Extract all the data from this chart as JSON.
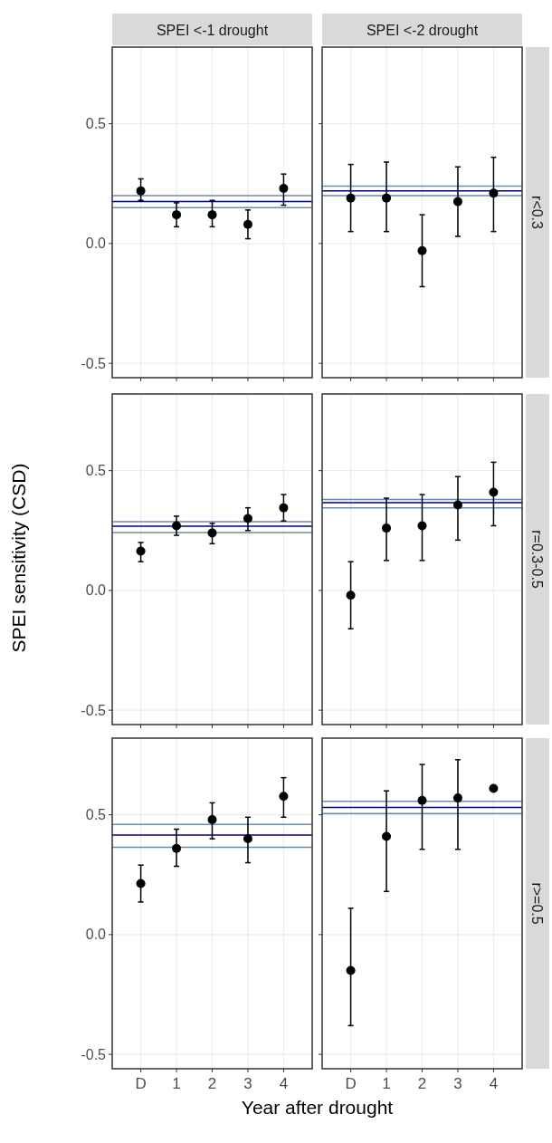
{
  "chart_data": [
    {
      "type": "scatter",
      "title": "SPEI <-1 drought",
      "categories": [
        "D",
        "1",
        "2",
        "3",
        "4"
      ],
      "values": [
        0.22,
        0.12,
        0.12,
        0.08,
        0.23
      ],
      "errors": [
        [
          0.18,
          0.27
        ],
        [
          0.07,
          0.17
        ],
        [
          0.07,
          0.18
        ],
        [
          0.02,
          0.14
        ],
        [
          0.16,
          0.29
        ]
      ],
      "color": "#000000",
      "marker": "circle",
      "ylim": [
        -0.56,
        0.82
      ],
      "yticks": [
        {
          "value": -0.5,
          "label": "-0.5"
        },
        {
          "value": 0,
          "label": "0.0"
        },
        {
          "value": 0.5,
          "label": "0.5"
        }
      ],
      "grid": true,
      "tick_labels": "y",
      "ref_lines": [
        {
          "axis": "y",
          "value": 0.2,
          "color": "#6a8caf"
        },
        {
          "axis": "y",
          "value": 0.175,
          "color": "#00008b"
        },
        {
          "axis": "y",
          "value": 0.15,
          "color": "#6a8caf"
        }
      ]
    },
    {
      "type": "scatter",
      "title": "SPEI <-2 drought",
      "annotations": [
        "r<0.3"
      ],
      "categories": [
        "D",
        "1",
        "2",
        "3",
        "4"
      ],
      "values": [
        0.19,
        0.19,
        -0.03,
        0.175,
        0.21
      ],
      "errors": [
        [
          0.05,
          0.33
        ],
        [
          0.05,
          0.34
        ],
        [
          -0.18,
          0.12
        ],
        [
          0.03,
          0.32
        ],
        [
          0.05,
          0.36
        ]
      ],
      "color": "#000000",
      "marker": "circle",
      "ylim": [
        -0.56,
        0.82
      ],
      "yticks": [
        {
          "value": -0.5,
          "label": "-0.5"
        },
        {
          "value": 0,
          "label": "0.0"
        },
        {
          "value": 0.5,
          "label": "0.5"
        }
      ],
      "grid": true,
      "tick_labels": false,
      "ref_lines": [
        {
          "axis": "y",
          "value": 0.24,
          "color": "#6a8caf"
        },
        {
          "axis": "y",
          "value": 0.22,
          "color": "#00008b"
        },
        {
          "axis": "y",
          "value": 0.2,
          "color": "#6a8caf"
        }
      ]
    },
    {
      "type": "scatter",
      "ylabel": "SPEI sensitivity (CSD)",
      "categories": [
        "D",
        "1",
        "2",
        "3",
        "4"
      ],
      "values": [
        0.164,
        0.27,
        0.24,
        0.3,
        0.345
      ],
      "errors": [
        [
          0.12,
          0.2
        ],
        [
          0.23,
          0.31
        ],
        [
          0.195,
          0.28
        ],
        [
          0.25,
          0.345
        ],
        [
          0.29,
          0.4
        ]
      ],
      "color": "#000000",
      "marker": "circle",
      "ylim": [
        -0.56,
        0.82
      ],
      "yticks": [
        {
          "value": -0.5,
          "label": "-0.5"
        },
        {
          "value": 0,
          "label": "0.0"
        },
        {
          "value": 0.5,
          "label": "0.5"
        }
      ],
      "grid": true,
      "tick_labels": "y",
      "ref_lines": [
        {
          "axis": "y",
          "value": 0.287,
          "color": "#6a8caf"
        },
        {
          "axis": "y",
          "value": 0.268,
          "color": "#00008b"
        },
        {
          "axis": "y",
          "value": 0.242,
          "color": "#6a8caf"
        }
      ]
    },
    {
      "type": "scatter",
      "annotations": [
        "r=0.3-0.5"
      ],
      "categories": [
        "D",
        "1",
        "2",
        "3",
        "4"
      ],
      "values": [
        -0.02,
        0.26,
        0.27,
        0.357,
        0.41
      ],
      "errors": [
        [
          -0.16,
          0.12
        ],
        [
          0.125,
          0.385
        ],
        [
          0.125,
          0.4
        ],
        [
          0.21,
          0.475
        ],
        [
          0.27,
          0.535
        ]
      ],
      "color": "#000000",
      "marker": "circle",
      "ylim": [
        -0.56,
        0.82
      ],
      "yticks": [
        {
          "value": -0.5,
          "label": "-0.5"
        },
        {
          "value": 0,
          "label": "0.0"
        },
        {
          "value": 0.5,
          "label": "0.5"
        }
      ],
      "grid": true,
      "tick_labels": false,
      "ref_lines": [
        {
          "axis": "y",
          "value": 0.38,
          "color": "#6a8caf"
        },
        {
          "axis": "y",
          "value": 0.366,
          "color": "#00008b"
        },
        {
          "axis": "y",
          "value": 0.345,
          "color": "#6a8caf"
        }
      ]
    },
    {
      "type": "scatter",
      "xlabel": "Year after drought",
      "categories": [
        "D",
        "1",
        "2",
        "3",
        "4"
      ],
      "values": [
        0.213,
        0.36,
        0.48,
        0.4,
        0.577
      ],
      "errors": [
        [
          0.136,
          0.29
        ],
        [
          0.285,
          0.44
        ],
        [
          0.4,
          0.55
        ],
        [
          0.3,
          0.49
        ],
        [
          0.49,
          0.655
        ]
      ],
      "color": "#000000",
      "marker": "circle",
      "ylim": [
        -0.56,
        0.82
      ],
      "yticks": [
        {
          "value": -0.5,
          "label": "-0.5"
        },
        {
          "value": 0,
          "label": "0.0"
        },
        {
          "value": 0.5,
          "label": "0.5"
        }
      ],
      "grid": true,
      "ref_lines": [
        {
          "axis": "y",
          "value": 0.46,
          "color": "#6a8caf"
        },
        {
          "axis": "y",
          "value": 0.415,
          "color": "#00008b"
        },
        {
          "axis": "y",
          "value": 0.364,
          "color": "#6a8caf"
        }
      ]
    },
    {
      "type": "scatter",
      "annotations": [
        "r>=0.5"
      ],
      "categories": [
        "D",
        "1",
        "2",
        "3",
        "4"
      ],
      "values": [
        -0.15,
        0.41,
        0.56,
        0.57,
        0.61
      ],
      "errors": [
        [
          -0.38,
          0.11
        ],
        [
          0.18,
          0.6
        ],
        [
          0.356,
          0.71
        ],
        [
          0.356,
          0.73
        ],
        null
      ],
      "color": "#000000",
      "marker": "circle",
      "ylim": [
        -0.56,
        0.82
      ],
      "yticks": [
        {
          "value": -0.5,
          "label": "-0.5"
        },
        {
          "value": 0,
          "label": "0.0"
        },
        {
          "value": 0.5,
          "label": "0.5"
        }
      ],
      "grid": true,
      "tick_labels": "x",
      "ref_lines": [
        {
          "axis": "y",
          "value": 0.556,
          "color": "#6a8caf"
        },
        {
          "axis": "y",
          "value": 0.531,
          "color": "#00008b"
        },
        {
          "axis": "y",
          "value": 0.505,
          "color": "#6a8caf"
        }
      ]
    }
  ]
}
